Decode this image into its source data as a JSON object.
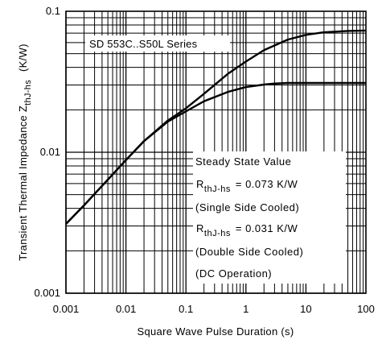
{
  "chart_data": {
    "type": "line",
    "title": "SD 553C..S50L Series",
    "xlabel": "Square Wave Pulse Duration (s)",
    "ylabel": "Transient Thermal Impedance Z",
    "ylabel_sub": "thJ-hs",
    "ylabel_unit": "(K/W)",
    "x_scale": "log",
    "y_scale": "log",
    "xlim": [
      0.001,
      100
    ],
    "ylim": [
      0.001,
      0.1
    ],
    "grid": true,
    "x_ticks": [
      {
        "value": 0.001,
        "label": "0.001"
      },
      {
        "value": 0.01,
        "label": "0.01"
      },
      {
        "value": 0.1,
        "label": "0.1"
      },
      {
        "value": 1,
        "label": "1"
      },
      {
        "value": 10,
        "label": "10"
      },
      {
        "value": 100,
        "label": "100"
      }
    ],
    "y_ticks": [
      {
        "value": 0.001,
        "label": "0.001"
      },
      {
        "value": 0.01,
        "label": "0.01"
      },
      {
        "value": 0.1,
        "label": "0.1"
      }
    ],
    "series": [
      {
        "x": [
          0.001,
          0.002,
          0.005,
          0.01,
          0.02,
          0.05,
          0.1,
          0.2,
          0.5,
          1,
          2,
          5,
          10,
          20,
          50,
          100
        ],
        "y": [
          0.0031,
          0.0042,
          0.0064,
          0.0088,
          0.012,
          0.0168,
          0.0205,
          0.026,
          0.036,
          0.044,
          0.053,
          0.063,
          0.068,
          0.071,
          0.0725,
          0.073
        ]
      },
      {
        "x": [
          0.001,
          0.002,
          0.005,
          0.01,
          0.02,
          0.05,
          0.1,
          0.2,
          0.5,
          1,
          2,
          3,
          5,
          10,
          50,
          100
        ],
        "y": [
          0.0031,
          0.0042,
          0.0064,
          0.0088,
          0.012,
          0.0165,
          0.0195,
          0.023,
          0.0268,
          0.029,
          0.0302,
          0.0307,
          0.031,
          0.031,
          0.031,
          0.031
        ]
      }
    ],
    "annotation_lines": [
      "Steady State Value",
      "R thJ-hs = 0.073 K/W",
      "(Single Side Cooled)",
      "R thJ-hs = 0.031 K/W",
      "(Double Side Cooled)",
      "(DC Operation)"
    ],
    "annotation": {
      "line1": "Steady State Value",
      "r_symbol": "R",
      "r_sub": "thJ-hs",
      "value1": "= 0.073 K/W",
      "note1": "(Single Side Cooled)",
      "value2": "= 0.031 K/W",
      "note2": "(Double Side Cooled)",
      "note3": "(DC Operation)"
    }
  }
}
